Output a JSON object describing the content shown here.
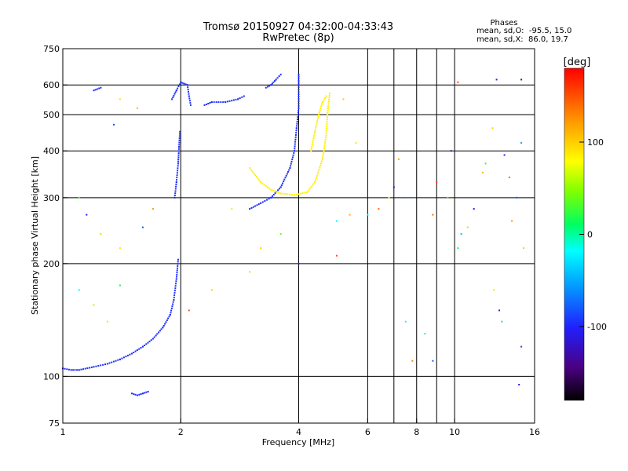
{
  "chart_data": {
    "type": "scatter",
    "title": "Tromsø 20150927 04:32:00-04:33:43",
    "subtitle": "RwPretec (8p)",
    "xlabel": "Frequency [MHz]",
    "ylabel": "Stationary phase Virtual Height [km]",
    "x_scale": "log",
    "y_scale": "log",
    "xlim": [
      1,
      16
    ],
    "ylim": [
      75,
      750
    ],
    "x_ticks": [
      1,
      2,
      4,
      6,
      8,
      10,
      16
    ],
    "x_tick_labels": [
      "1",
      "2",
      "4",
      "6",
      "8",
      "10",
      "16"
    ],
    "x_grid": [
      2,
      4,
      6,
      7,
      8,
      9,
      10
    ],
    "y_ticks": [
      75,
      100,
      200,
      300,
      400,
      500,
      600,
      750
    ],
    "y_tick_labels": [
      "75",
      "100",
      "200",
      "300",
      "400",
      "500",
      "600",
      "750"
    ],
    "y_grid": [
      100,
      200,
      300,
      400,
      500,
      600
    ],
    "grid": true,
    "legend": {
      "title": "Phases",
      "lines": [
        "mean, sd,O:  -95.5, 15.0",
        "mean, sd,X:  86.0, 19.7"
      ],
      "placement": "top-right"
    },
    "colorbar": {
      "label": "[deg]",
      "range": [
        -180,
        180
      ],
      "ticks": [
        100,
        0,
        -100
      ],
      "tick_labels": [
        "100",
        "0",
        "-100"
      ]
    },
    "colors": {
      "axis": "#000000",
      "grid": "#000000",
      "background": "#ffffff"
    },
    "series": [
      {
        "mode": "O",
        "phase": -95.5,
        "traces": [
          [
            [
              1.0,
              105
            ],
            [
              1.05,
              104
            ],
            [
              1.1,
              104
            ],
            [
              1.2,
              106
            ],
            [
              1.3,
              108
            ],
            [
              1.4,
              111
            ],
            [
              1.5,
              115
            ],
            [
              1.6,
              120
            ],
            [
              1.7,
              126
            ],
            [
              1.8,
              135
            ],
            [
              1.88,
              146
            ],
            [
              1.92,
              160
            ],
            [
              1.95,
              182
            ],
            [
              1.97,
              205
            ]
          ],
          [
            [
              1.93,
              300
            ],
            [
              1.95,
              330
            ],
            [
              1.97,
              370
            ],
            [
              1.98,
              410
            ],
            [
              1.99,
              450
            ]
          ],
          [
            [
              1.9,
              550
            ],
            [
              1.95,
              580
            ],
            [
              2.0,
              610
            ],
            [
              2.08,
              600
            ],
            [
              2.1,
              560
            ],
            [
              2.12,
              530
            ]
          ],
          [
            [
              2.3,
              530
            ],
            [
              2.4,
              540
            ],
            [
              2.6,
              540
            ],
            [
              2.8,
              550
            ],
            [
              2.9,
              560
            ]
          ],
          [
            [
              3.0,
              280
            ],
            [
              3.2,
              290
            ],
            [
              3.4,
              300
            ],
            [
              3.6,
              320
            ],
            [
              3.8,
              360
            ],
            [
              3.9,
              400
            ],
            [
              3.95,
              460
            ],
            [
              4.0,
              520
            ],
            [
              4.0,
              600
            ],
            [
              4.0,
              640
            ]
          ],
          [
            [
              3.3,
              590
            ],
            [
              3.4,
              600
            ],
            [
              3.5,
              620
            ],
            [
              3.6,
              640
            ]
          ],
          [
            [
              1.2,
              580
            ],
            [
              1.25,
              590
            ]
          ],
          [
            [
              1.5,
              90
            ],
            [
              1.55,
              89
            ],
            [
              1.6,
              90
            ],
            [
              1.65,
              91
            ]
          ]
        ]
      },
      {
        "mode": "X",
        "phase": 86.0,
        "traces": [
          [
            [
              3.0,
              360
            ],
            [
              3.2,
              330
            ],
            [
              3.4,
              315
            ],
            [
              3.6,
              308
            ],
            [
              3.9,
              305
            ],
            [
              4.2,
              310
            ],
            [
              4.4,
              330
            ],
            [
              4.6,
              380
            ],
            [
              4.7,
              440
            ],
            [
              4.75,
              520
            ],
            [
              4.8,
              570
            ]
          ],
          [
            [
              4.3,
              400
            ],
            [
              4.4,
              450
            ],
            [
              4.5,
              500
            ],
            [
              4.6,
              540
            ],
            [
              4.7,
              560
            ]
          ]
        ]
      }
    ],
    "scatter_points": [
      [
        1.35,
        470,
        -90
      ],
      [
        1.4,
        550,
        90
      ],
      [
        1.55,
        520,
        110
      ],
      [
        1.1,
        300,
        30
      ],
      [
        1.15,
        270,
        -100
      ],
      [
        1.25,
        240,
        60
      ],
      [
        1.4,
        220,
        90
      ],
      [
        1.6,
        250,
        -80
      ],
      [
        1.7,
        280,
        120
      ],
      [
        1.1,
        170,
        -20
      ],
      [
        1.2,
        155,
        60
      ],
      [
        1.3,
        140,
        90
      ],
      [
        1.4,
        175,
        10
      ],
      [
        2.1,
        150,
        150
      ],
      [
        2.4,
        170,
        100
      ],
      [
        2.7,
        280,
        70
      ],
      [
        3.0,
        190,
        60
      ],
      [
        3.2,
        220,
        100
      ],
      [
        3.6,
        240,
        40
      ],
      [
        4.0,
        200,
        -110
      ],
      [
        5.0,
        210,
        150
      ],
      [
        5.4,
        270,
        110
      ],
      [
        6.0,
        270,
        -10
      ],
      [
        6.4,
        280,
        140
      ],
      [
        6.8,
        300,
        80
      ],
      [
        7.0,
        320,
        -120
      ],
      [
        7.2,
        380,
        120
      ],
      [
        7.4,
        300,
        -60
      ],
      [
        7.5,
        140,
        -20
      ],
      [
        7.8,
        110,
        130
      ],
      [
        8.4,
        130,
        -10
      ],
      [
        8.8,
        270,
        140
      ],
      [
        9.0,
        330,
        160
      ],
      [
        9.6,
        300,
        120
      ],
      [
        10.2,
        220,
        10
      ],
      [
        10.4,
        240,
        -40
      ],
      [
        10.8,
        250,
        100
      ],
      [
        11.2,
        280,
        -110
      ],
      [
        11.8,
        350,
        110
      ],
      [
        12.0,
        370,
        20
      ],
      [
        12.5,
        460,
        100
      ],
      [
        13.4,
        390,
        -100
      ],
      [
        13.8,
        340,
        140
      ],
      [
        14.0,
        260,
        120
      ],
      [
        14.4,
        300,
        -80
      ],
      [
        14.8,
        420,
        -50
      ],
      [
        15.0,
        220,
        100
      ],
      [
        14.6,
        95,
        -110
      ],
      [
        14.8,
        620,
        -130
      ],
      [
        12.8,
        620,
        -110
      ],
      [
        10.2,
        610,
        150
      ],
      [
        9.8,
        400,
        -130
      ],
      [
        12.6,
        170,
        90
      ],
      [
        13.0,
        150,
        -100
      ],
      [
        13.2,
        140,
        10
      ],
      [
        14.8,
        120,
        -90
      ],
      [
        5.6,
        420,
        90
      ],
      [
        5.2,
        550,
        100
      ],
      [
        5.0,
        260,
        -20
      ],
      [
        8.8,
        110,
        -80
      ]
    ]
  }
}
